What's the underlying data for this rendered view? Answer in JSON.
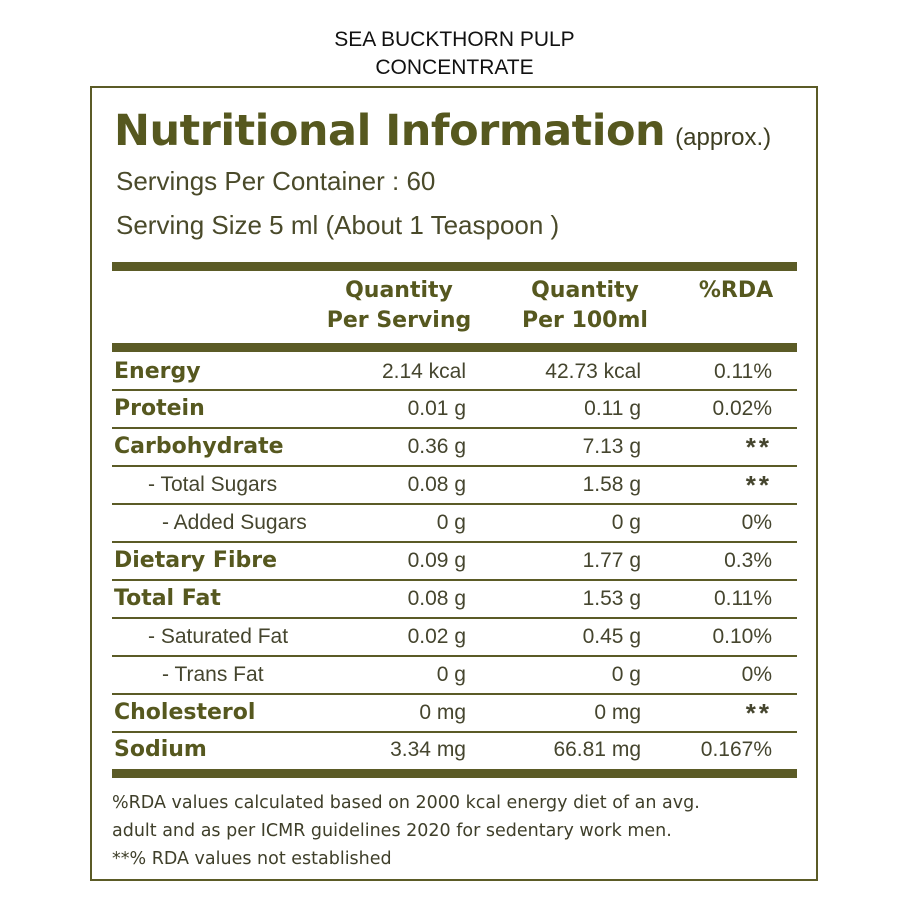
{
  "product": {
    "title_line1": "SEA BUCKTHORN PULP",
    "title_line2": "CONCENTRATE"
  },
  "label": {
    "heading": "Nutritional Information",
    "heading_suffix": "(approx.)",
    "servings_per_container": "Servings Per Container : 60",
    "serving_size": "Serving Size 5 ml (About 1 Teaspoon )"
  },
  "columns": {
    "per_serving_line1": "Quantity",
    "per_serving_line2": "Per Serving",
    "per_100_line1": "Quantity",
    "per_100_line2": "Per 100ml",
    "rda": "%RDA"
  },
  "rows": [
    {
      "name": "Energy",
      "per_serving": "2.14 kcal",
      "per_100": "42.73 kcal",
      "rda": "0.11%"
    },
    {
      "name": "Protein",
      "per_serving": "0.01 g",
      "per_100": "0.11 g",
      "rda": "0.02%"
    },
    {
      "name": "Carbohydrate",
      "per_serving": "0.36 g",
      "per_100": "7.13 g",
      "rda": "**"
    },
    {
      "name": "- Total Sugars",
      "per_serving": "0.08 g",
      "per_100": "1.58 g",
      "rda": "**"
    },
    {
      "name": "- Added Sugars",
      "per_serving": "0 g",
      "per_100": "0 g",
      "rda": "0%"
    },
    {
      "name": "Dietary Fibre",
      "per_serving": "0.09 g",
      "per_100": "1.77 g",
      "rda": "0.3%"
    },
    {
      "name": "Total Fat",
      "per_serving": "0.08 g",
      "per_100": "1.53 g",
      "rda": "0.11%"
    },
    {
      "name": "- Saturated Fat",
      "per_serving": "0.02 g",
      "per_100": "0.45 g",
      "rda": "0.10%"
    },
    {
      "name": "- Trans Fat",
      "per_serving": "0 g",
      "per_100": "0 g",
      "rda": "0%"
    },
    {
      "name": "Cholesterol",
      "per_serving": "0 mg",
      "per_100": "0 mg",
      "rda": "**"
    },
    {
      "name": "Sodium",
      "per_serving": "3.34 mg",
      "per_100": "66.81 mg",
      "rda": "0.167%"
    }
  ],
  "footnote": {
    "line1": "%RDA values calculated based on 2000 kcal energy diet of an avg.",
    "line2": "adult and as per ICMR guidelines 2020 for sedentary work men.",
    "line3": "**% RDA values not established"
  },
  "colors": {
    "accent": "#5b5b26",
    "heading": "#56581f",
    "text": "#45452e"
  }
}
